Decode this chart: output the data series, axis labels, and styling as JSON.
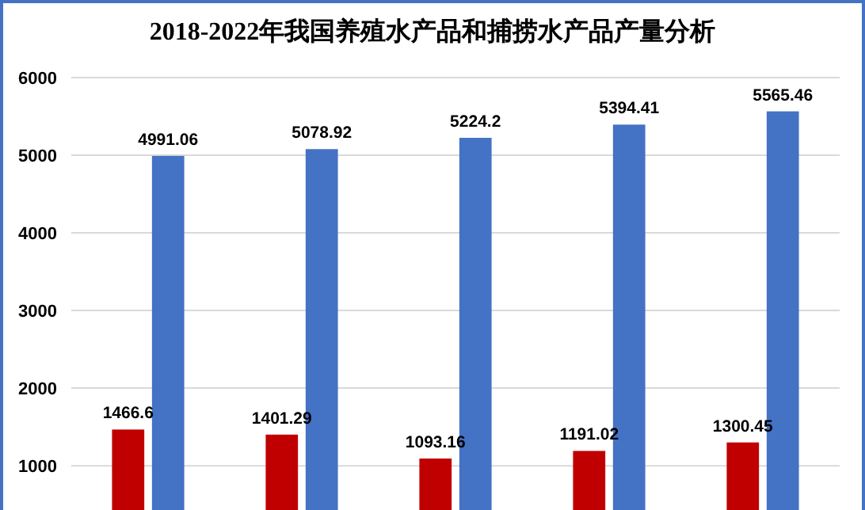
{
  "chart_data": {
    "type": "bar",
    "title": "2018-2022年我国养殖水产品和捕捞水产品产量分析",
    "categories": [
      null,
      null,
      null,
      null,
      null
    ],
    "series": [
      {
        "color": "#c00000",
        "values": [
          1466.6,
          1401.29,
          1093.16,
          1191.02,
          1300.45
        ],
        "value_labels": [
          "1466.6",
          "1401.29",
          "1093.16",
          "1191.02",
          "1300.45"
        ]
      },
      {
        "color": "#4472c4",
        "values": [
          4991.06,
          5078.92,
          5224.2,
          5394.41,
          5565.46
        ],
        "value_labels": [
          "4991.06",
          "5078.92",
          "5224.2",
          "5394.41",
          "5565.46"
        ]
      }
    ],
    "ylim": [
      430,
      6000
    ],
    "yticks": [
      1000,
      2000,
      3000,
      4000,
      5000,
      6000
    ],
    "grid": "y",
    "tick_labels": "y"
  }
}
